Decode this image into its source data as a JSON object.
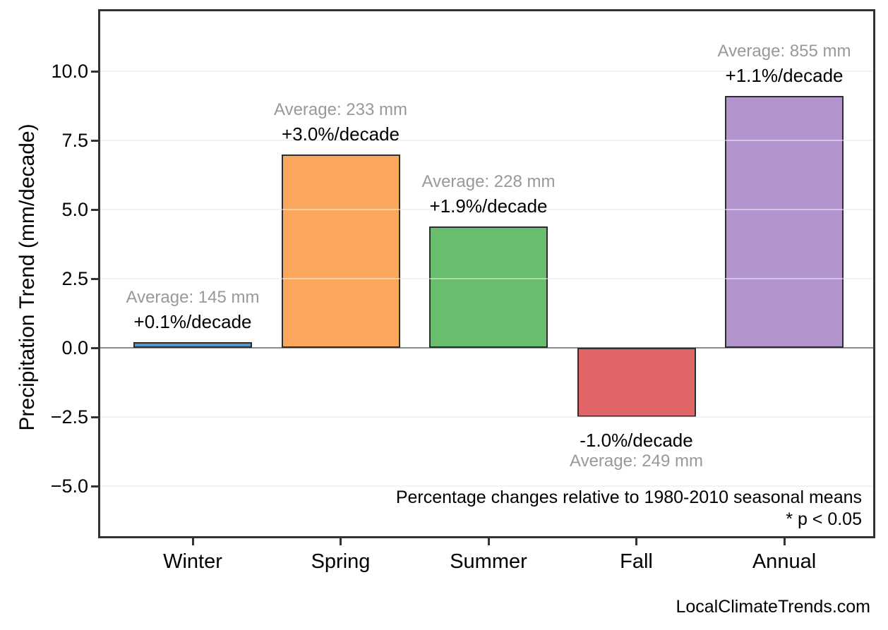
{
  "chart_data": {
    "type": "bar",
    "title": "",
    "categories": [
      "Winter",
      "Spring",
      "Summer",
      "Fall",
      "Annual"
    ],
    "values": [
      0.2,
      7.0,
      4.4,
      -2.5,
      9.1
    ],
    "bar_colors": [
      "#5794c6",
      "#fca85c",
      "#68be6c",
      "#e06567",
      "#b295cf"
    ],
    "point_labels": [
      {
        "average": "Average: 145 mm",
        "trend": "+0.1%/decade"
      },
      {
        "average": "Average: 233 mm",
        "trend": "+3.0%/decade"
      },
      {
        "average": "Average: 228 mm",
        "trend": "+1.9%/decade"
      },
      {
        "average": "Average: 249 mm",
        "trend": "-1.0%/decade"
      },
      {
        "average": "Average: 855 mm",
        "trend": "+1.1%/decade"
      }
    ],
    "xlabel": "",
    "ylabel": "Precipitation Trend (mm/decade)",
    "yticks": [
      10.0,
      7.5,
      5.0,
      2.5,
      0.0,
      -2.5,
      -5.0
    ],
    "ytick_labels": [
      "10.0",
      "7.5",
      "5.0",
      "2.5",
      "0.0",
      "−2.5",
      "−5.0"
    ],
    "ylim": [
      -6.9,
      12.25
    ],
    "grid": true,
    "legend": false,
    "annotations": {
      "note_line1": "Percentage changes relative to 1980-2010 seasonal means",
      "note_line2": "* p < 0.05"
    }
  },
  "colors": {
    "bar_edge": "#2e2e2e",
    "spine": "#333333",
    "gridline": "#e9e9e9",
    "zero_line": "#8c8c8c",
    "average_text": "#999999",
    "trend_text": "#000000",
    "background": "#ffffff"
  },
  "footer": {
    "watermark": "LocalClimateTrends.com"
  }
}
